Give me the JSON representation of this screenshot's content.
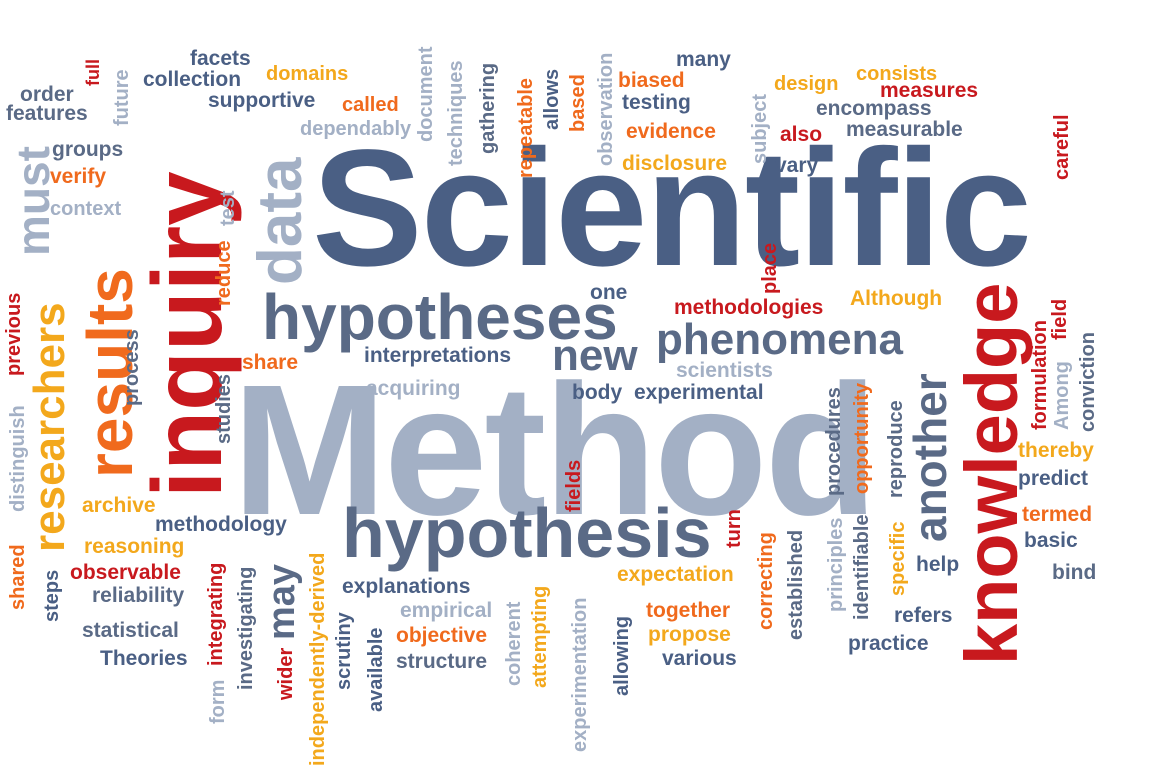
{
  "colors": {
    "blue": "#4a5f84",
    "slate": "#5a6a86",
    "gray": "#a3b0c5",
    "red": "#c8191e",
    "orange": "#f06a1d",
    "gold": "#f3a81c"
  },
  "words": {
    "scientific": "Scientific",
    "method": "Method",
    "inquiry": "inquiry",
    "knowledge": "knowledge",
    "results": "results",
    "hypotheses": "hypotheses",
    "hypothesis": "hypothesis",
    "data": "data",
    "researchers": "researchers",
    "phenomena": "phenomena",
    "new": "new",
    "must": "must",
    "another": "another",
    "may": "may",
    "order": "order",
    "features": "features",
    "full": "full",
    "future": "future",
    "facets": "facets",
    "collection": "collection",
    "supportive": "supportive",
    "domains": "domains",
    "called": "called",
    "dependably": "dependably",
    "document": "document",
    "techniques": "techniques",
    "gathering": "gathering",
    "repeatable": "repeatable",
    "allows": "allows",
    "based": "based",
    "observation": "observation",
    "biased": "biased",
    "testing": "testing",
    "evidence": "evidence",
    "disclosure": "disclosure",
    "many": "many",
    "subject": "subject",
    "design": "design",
    "consists": "consists",
    "measures": "measures",
    "encompass": "encompass",
    "also": "also",
    "measurable": "measurable",
    "vary": "vary",
    "careful": "careful",
    "groups": "groups",
    "verify": "verify",
    "context": "context",
    "test": "test",
    "reduce": "reduce",
    "previous": "previous",
    "process": "process",
    "share": "share",
    "studies": "studies",
    "distinguish": "distinguish",
    "interpretations": "interpretations",
    "acquiring": "acquiring",
    "one": "one",
    "place": "place",
    "methodologies": "methodologies",
    "although": "Although",
    "formulation": "formulation",
    "field": "field",
    "among": "Among",
    "conviction": "conviction",
    "scientists": "scientists",
    "body": "body",
    "experimental": "experimental",
    "archive": "archive",
    "methodology": "methodology",
    "reasoning": "reasoning",
    "shared": "shared",
    "observable": "observable",
    "steps": "steps",
    "reliability": "reliability",
    "statistical": "statistical",
    "theories": "Theories",
    "integrating": "integrating",
    "investigating": "investigating",
    "form": "form",
    "wider": "wider",
    "independently_derived": "independently-derived",
    "scrutiny": "scrutiny",
    "available": "available",
    "explanations": "explanations",
    "empirical": "empirical",
    "coherent": "coherent",
    "objective": "objective",
    "structure": "structure",
    "attempting": "attempting",
    "experimentation": "experimentation",
    "fields": "fields",
    "expectation": "expectation",
    "allowing": "allowing",
    "together": "together",
    "propose": "propose",
    "various": "various",
    "turn": "turn",
    "correcting": "correcting",
    "established": "established",
    "principles": "principles",
    "procedures": "procedures",
    "identifiable": "identifiable",
    "opportunity": "opportunity",
    "specific": "specific",
    "reproduce": "reproduce",
    "help": "help",
    "refers": "refers",
    "practice": "practice",
    "thereby": "thereby",
    "predict": "predict",
    "termed": "termed",
    "basic": "basic",
    "bind": "bind"
  }
}
